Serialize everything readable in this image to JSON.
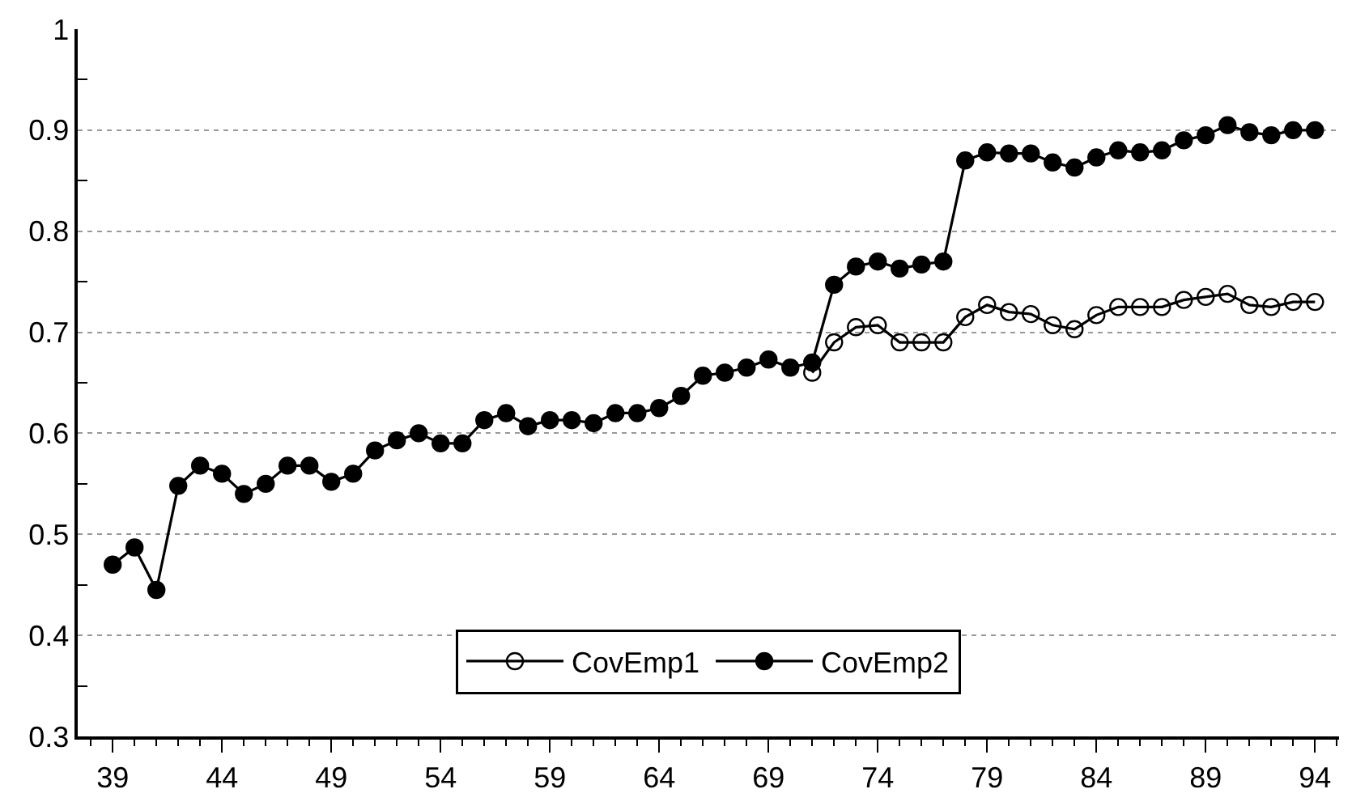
{
  "chart_data": {
    "type": "line",
    "x": [
      39,
      40,
      41,
      42,
      43,
      44,
      45,
      46,
      47,
      48,
      49,
      50,
      51,
      52,
      53,
      54,
      55,
      56,
      57,
      58,
      59,
      60,
      61,
      62,
      63,
      64,
      65,
      66,
      67,
      68,
      69,
      70,
      71,
      72,
      73,
      74,
      75,
      76,
      77,
      78,
      79,
      80,
      81,
      82,
      83,
      84,
      85,
      86,
      87,
      88,
      89,
      90,
      91,
      92,
      93,
      94
    ],
    "series": [
      {
        "name": "CovEmp1",
        "color": "#000000",
        "marker": "circle-open",
        "values": [
          null,
          null,
          null,
          null,
          null,
          null,
          null,
          null,
          null,
          null,
          null,
          null,
          null,
          null,
          null,
          null,
          null,
          null,
          null,
          null,
          null,
          null,
          null,
          null,
          null,
          null,
          null,
          null,
          null,
          null,
          null,
          null,
          0.66,
          0.69,
          0.705,
          0.707,
          0.69,
          0.69,
          0.69,
          0.715,
          0.727,
          0.72,
          0.718,
          0.707,
          0.703,
          0.717,
          0.725,
          0.725,
          0.725,
          0.732,
          0.735,
          0.738,
          0.727,
          0.725,
          0.73,
          0.73
        ]
      },
      {
        "name": "CovEmp2",
        "color": "#000000",
        "marker": "circle",
        "values": [
          0.47,
          0.487,
          0.445,
          0.548,
          0.568,
          0.56,
          0.54,
          0.55,
          0.568,
          0.568,
          0.552,
          0.56,
          0.583,
          0.593,
          0.6,
          0.59,
          0.59,
          0.613,
          0.62,
          0.607,
          0.613,
          0.613,
          0.61,
          0.62,
          0.62,
          0.625,
          0.637,
          0.657,
          0.66,
          0.665,
          0.673,
          0.665,
          0.67,
          0.747,
          0.765,
          0.77,
          0.763,
          0.767,
          0.77,
          0.87,
          0.878,
          0.877,
          0.877,
          0.868,
          0.863,
          0.873,
          0.88,
          0.878,
          0.88,
          0.89,
          0.895,
          0.905,
          0.898,
          0.895,
          0.9,
          0.9
        ]
      }
    ],
    "xlim": [
      37.4,
      95.1
    ],
    "xticks": [
      39,
      44,
      49,
      54,
      59,
      64,
      69,
      74,
      79,
      84,
      89,
      94
    ],
    "ylim": [
      0.3,
      1
    ],
    "yticks": [
      0.3,
      0.4,
      0.5,
      0.6,
      0.7,
      0.8,
      0.9,
      1
    ],
    "grid": "y",
    "legend": "bottom",
    "line_style": "solid"
  }
}
